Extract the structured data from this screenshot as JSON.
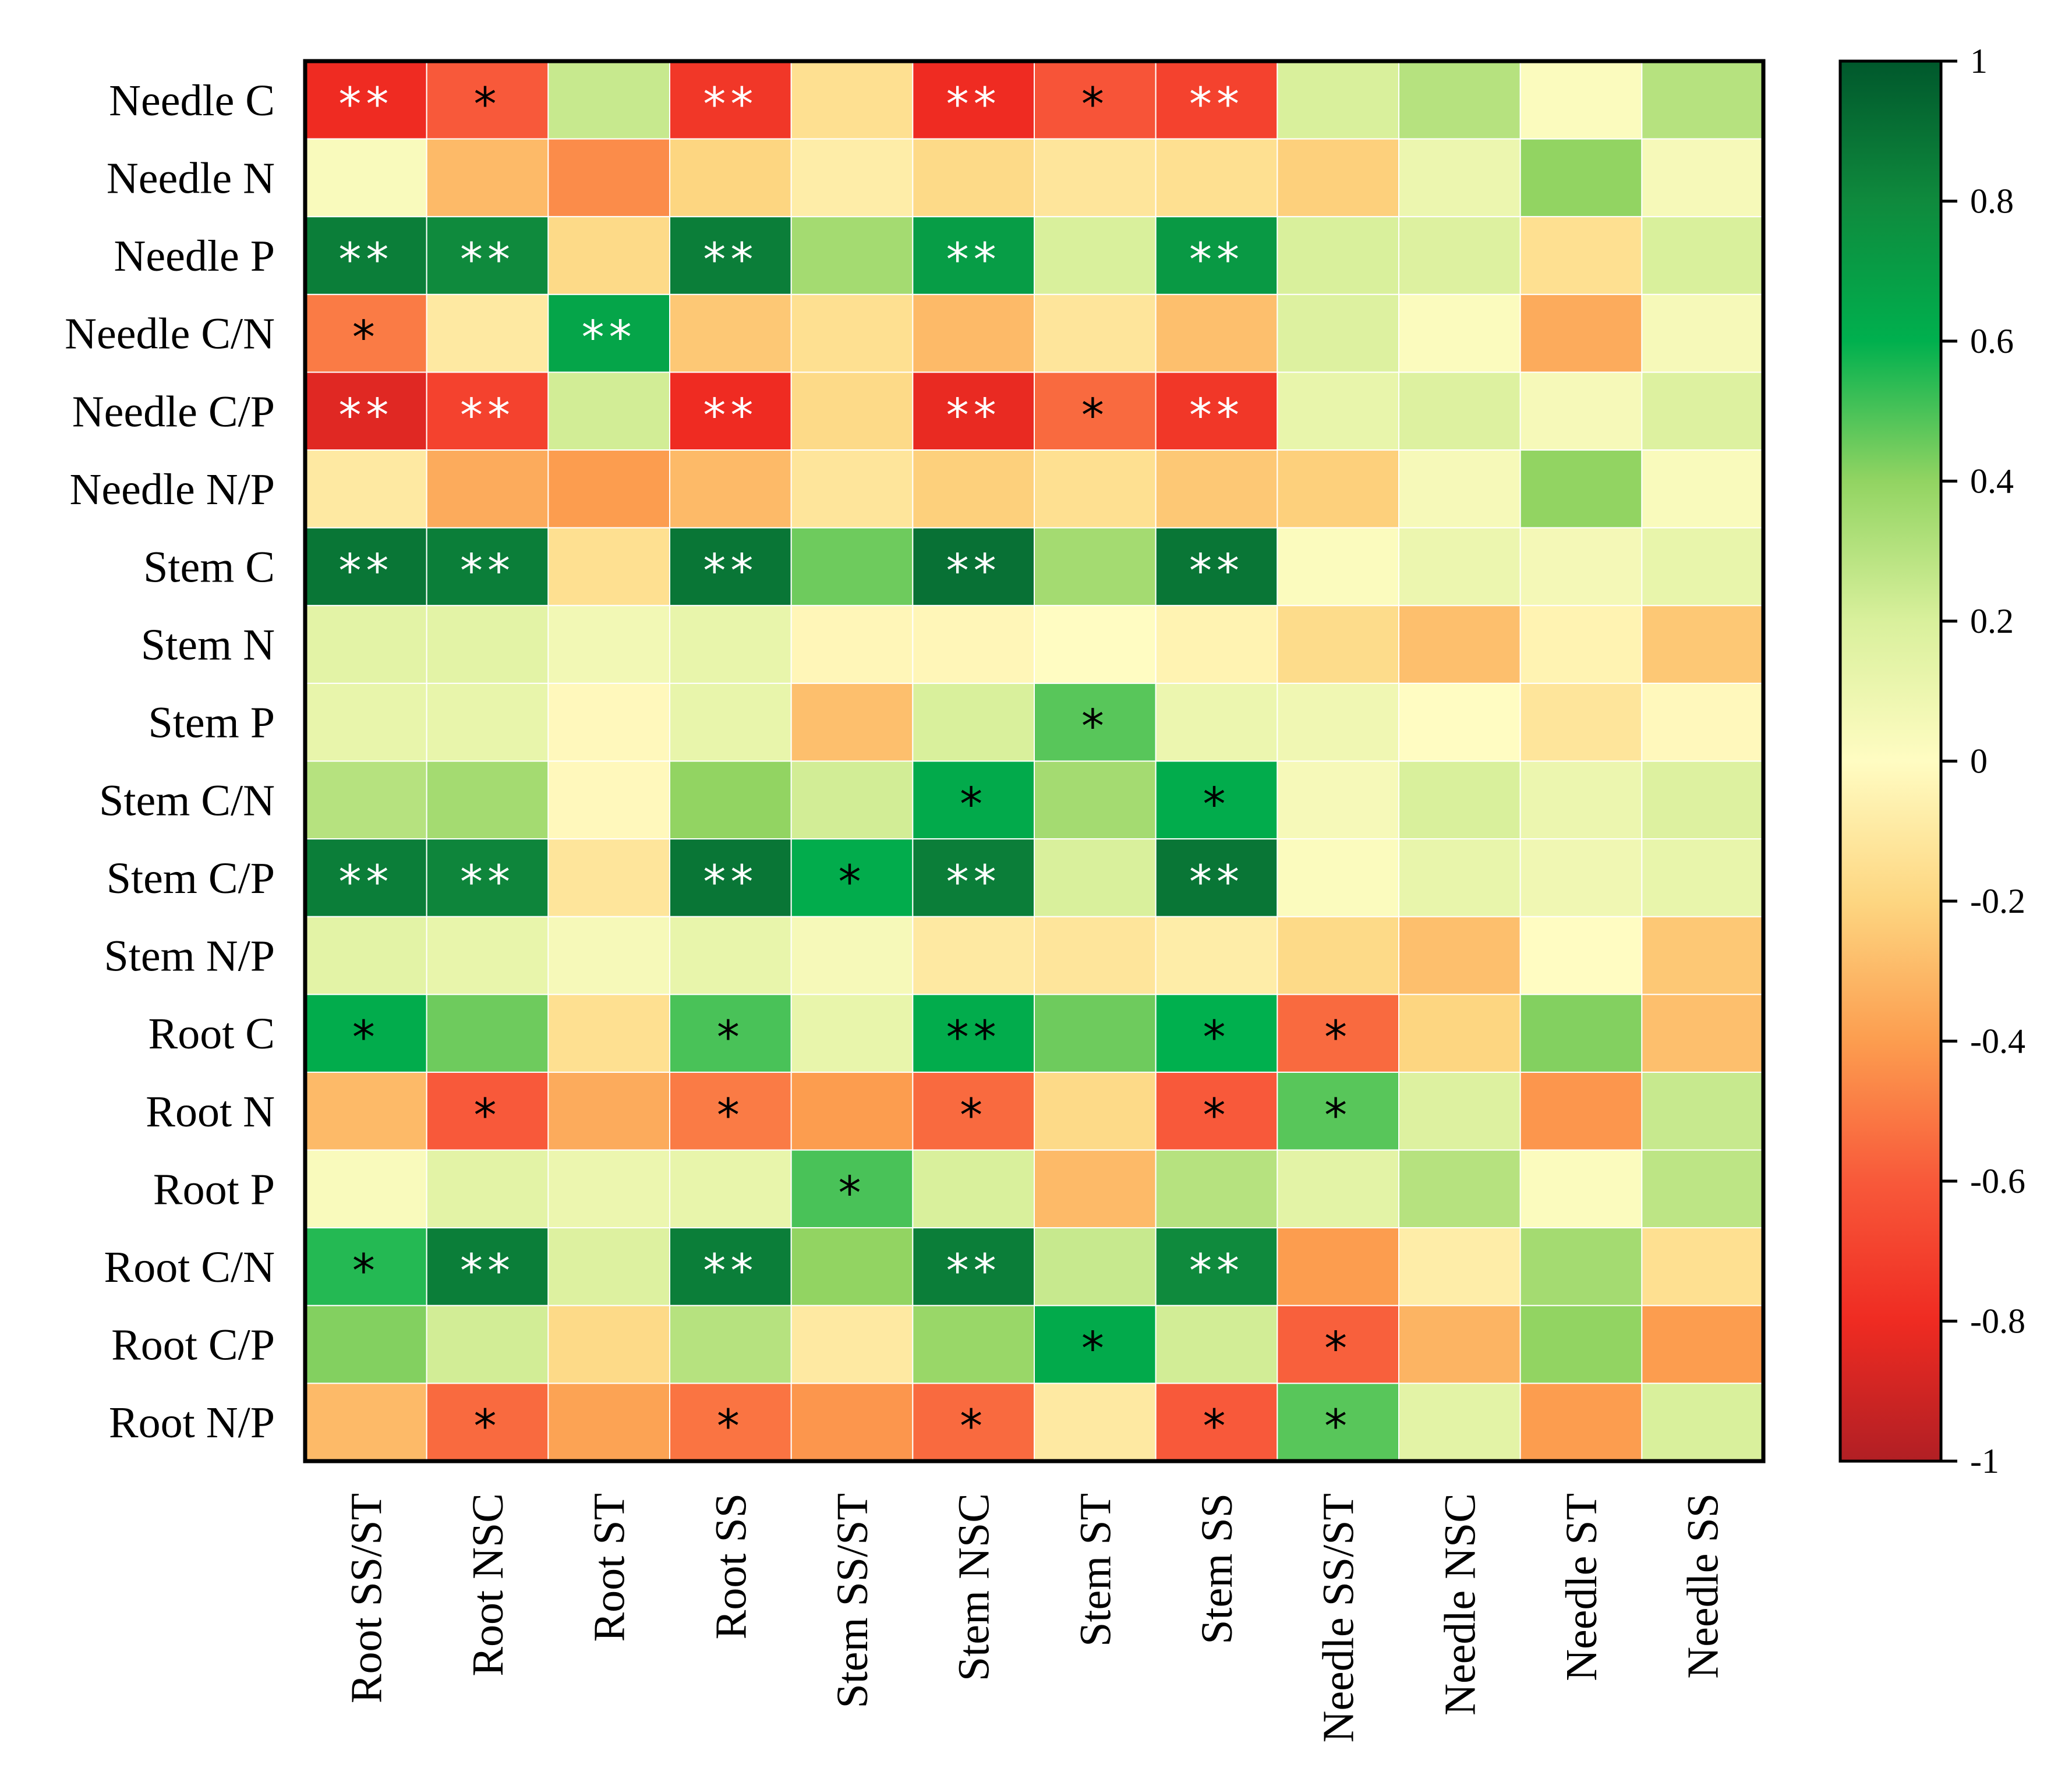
{
  "chart_data": {
    "type": "heatmap",
    "title": "",
    "rows": [
      "Needle C",
      "Needle N",
      "Needle P",
      "Needle C/N",
      "Needle C/P",
      "Needle N/P",
      "Stem C",
      "Stem N",
      "Stem P",
      "Stem C/N",
      "Stem C/P",
      "Stem N/P",
      "Root C",
      "Root N",
      "Root P",
      "Root C/N",
      "Root C/P",
      "Root N/P"
    ],
    "columns": [
      "Root SS/ST",
      "Root NSC",
      "Root ST",
      "Root SS",
      "Stem SS/ST",
      "Stem NSC",
      "Stem ST",
      "Stem SS",
      "Needle SS/ST",
      "Needle NSC",
      "Needle ST",
      "Needle SS"
    ],
    "values": [
      [
        -0.8,
        -0.6,
        0.25,
        -0.75,
        -0.15,
        -0.8,
        -0.62,
        -0.7,
        0.2,
        0.3,
        0.02,
        0.3
      ],
      [
        0.03,
        -0.3,
        -0.45,
        -0.2,
        -0.08,
        -0.18,
        -0.12,
        -0.15,
        -0.22,
        0.1,
        0.4,
        0.05
      ],
      [
        0.85,
        0.8,
        -0.18,
        0.85,
        0.35,
        0.7,
        0.2,
        0.72,
        0.2,
        0.18,
        -0.15,
        0.2
      ],
      [
        -0.5,
        -0.1,
        0.66,
        -0.25,
        -0.15,
        -0.3,
        -0.12,
        -0.28,
        0.18,
        0.02,
        -0.35,
        0.05
      ],
      [
        -0.85,
        -0.7,
        0.22,
        -0.8,
        -0.18,
        -0.82,
        -0.55,
        -0.75,
        0.12,
        0.18,
        0.05,
        0.18
      ],
      [
        -0.1,
        -0.35,
        -0.4,
        -0.3,
        -0.12,
        -0.22,
        -0.15,
        -0.25,
        -0.22,
        0.05,
        0.4,
        0.03
      ],
      [
        0.88,
        0.85,
        -0.15,
        0.88,
        0.45,
        0.9,
        0.35,
        0.88,
        0.02,
        0.1,
        0.06,
        0.12
      ],
      [
        0.15,
        0.15,
        0.07,
        0.12,
        -0.03,
        -0.03,
        0.0,
        -0.05,
        -0.17,
        -0.28,
        -0.05,
        -0.25
      ],
      [
        0.12,
        0.12,
        -0.02,
        0.12,
        -0.28,
        0.2,
        0.48,
        0.1,
        0.08,
        0.0,
        -0.12,
        -0.02
      ],
      [
        0.3,
        0.35,
        -0.02,
        0.4,
        0.22,
        0.63,
        0.35,
        0.62,
        0.05,
        0.2,
        0.1,
        0.18
      ],
      [
        0.85,
        0.82,
        -0.12,
        0.88,
        0.62,
        0.85,
        0.2,
        0.88,
        0.02,
        0.12,
        0.08,
        0.12
      ],
      [
        0.15,
        0.12,
        0.05,
        0.12,
        0.05,
        -0.1,
        -0.12,
        -0.08,
        -0.18,
        -0.28,
        0.0,
        -0.25
      ],
      [
        0.62,
        0.45,
        -0.15,
        0.5,
        0.12,
        0.62,
        0.45,
        0.6,
        -0.55,
        -0.2,
        0.42,
        -0.28
      ],
      [
        -0.3,
        -0.6,
        -0.35,
        -0.5,
        -0.4,
        -0.55,
        -0.18,
        -0.6,
        0.48,
        0.18,
        -0.42,
        0.25
      ],
      [
        0.03,
        0.15,
        0.1,
        0.12,
        0.5,
        0.2,
        -0.3,
        0.3,
        0.15,
        0.3,
        0.02,
        0.28
      ],
      [
        0.55,
        0.85,
        0.18,
        0.85,
        0.4,
        0.85,
        0.25,
        0.8,
        -0.4,
        -0.08,
        0.35,
        -0.15
      ],
      [
        0.42,
        0.22,
        -0.18,
        0.3,
        -0.1,
        0.38,
        0.63,
        0.22,
        -0.58,
        -0.32,
        0.4,
        -0.4
      ],
      [
        -0.3,
        -0.55,
        -0.38,
        -0.52,
        -0.42,
        -0.55,
        -0.1,
        -0.6,
        0.48,
        0.15,
        -0.4,
        0.2
      ]
    ],
    "significance": [
      [
        "**",
        "*",
        "",
        "**",
        "",
        "**",
        "*",
        "**",
        "",
        "",
        "",
        ""
      ],
      [
        "",
        "",
        "",
        "",
        "",
        "",
        "",
        "",
        "",
        "",
        "",
        ""
      ],
      [
        "**",
        "**",
        "",
        "**",
        "",
        "**",
        "",
        "**",
        "",
        "",
        "",
        ""
      ],
      [
        "*",
        "",
        "**",
        "",
        "",
        "",
        "",
        "",
        "",
        "",
        "",
        ""
      ],
      [
        "**",
        "**",
        "",
        "**",
        "",
        "**",
        "*",
        "**",
        "",
        "",
        "",
        ""
      ],
      [
        "",
        "",
        "",
        "",
        "",
        "",
        "",
        "",
        "",
        "",
        "",
        ""
      ],
      [
        "**",
        "**",
        "",
        "**",
        "",
        "**",
        "",
        "**",
        "",
        "",
        "",
        ""
      ],
      [
        "",
        "",
        "",
        "",
        "",
        "",
        "",
        "",
        "",
        "",
        "",
        ""
      ],
      [
        "",
        "",
        "",
        "",
        "",
        "",
        "*",
        "",
        "",
        "",
        "",
        ""
      ],
      [
        "",
        "",
        "",
        "",
        "",
        "*",
        "",
        "*",
        "",
        "",
        "",
        ""
      ],
      [
        "**",
        "**",
        "",
        "**",
        "*",
        "**",
        "",
        "**",
        "",
        "",
        "",
        ""
      ],
      [
        "",
        "",
        "",
        "",
        "",
        "",
        "",
        "",
        "",
        "",
        "",
        ""
      ],
      [
        "*",
        "",
        "",
        "*",
        "",
        "**",
        "",
        "*",
        "*",
        "",
        "",
        ""
      ],
      [
        "",
        "*",
        "",
        "*",
        "",
        "*",
        "",
        "*",
        "*",
        "",
        "",
        ""
      ],
      [
        "",
        "",
        "",
        "",
        "*",
        "",
        "",
        "",
        "",
        "",
        "",
        ""
      ],
      [
        "*",
        "**",
        "",
        "**",
        "",
        "**",
        "",
        "**",
        "",
        "",
        "",
        ""
      ],
      [
        "",
        "",
        "",
        "",
        "",
        "",
        "*",
        "",
        "*",
        "",
        "",
        ""
      ],
      [
        "",
        "*",
        "",
        "*",
        "",
        "*",
        "",
        "*",
        "*",
        "",
        "",
        ""
      ]
    ],
    "colorbar": {
      "range": [
        -1,
        1
      ],
      "ticks": [
        "1",
        "0.8",
        "0.6",
        "0.4",
        "0.2",
        "0",
        "-0.2",
        "-0.4",
        "-0.6",
        "-0.8",
        "-1"
      ],
      "tick_values": [
        1,
        0.8,
        0.6,
        0.4,
        0.2,
        0,
        -0.2,
        -0.4,
        -0.6,
        -0.8,
        -1
      ],
      "stops": [
        {
          "v": -1,
          "c": "#b11f24"
        },
        {
          "v": -0.8,
          "c": "#ef2b22"
        },
        {
          "v": -0.6,
          "c": "#f8593a"
        },
        {
          "v": -0.4,
          "c": "#fc9d4f"
        },
        {
          "v": -0.2,
          "c": "#fdd681"
        },
        {
          "v": 0,
          "c": "#fffcc2"
        },
        {
          "v": 0.2,
          "c": "#d9f09c"
        },
        {
          "v": 0.4,
          "c": "#92d462"
        },
        {
          "v": 0.6,
          "c": "#00b04e"
        },
        {
          "v": 0.8,
          "c": "#0f8a3d"
        },
        {
          "v": 1,
          "c": "#00582c"
        }
      ]
    }
  }
}
